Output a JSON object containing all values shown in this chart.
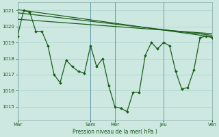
{
  "background_color": "#cce8e0",
  "grid_color": "#aad4cc",
  "line_color": "#1a5c1a",
  "marker_color": "#1a5c1a",
  "xlabel": "Pression niveau de la mer( hPa )",
  "xlabel_color": "#1a5c1a",
  "tick_color": "#1a5c1a",
  "ylim": [
    1014.2,
    1021.5
  ],
  "yticks": [
    1015,
    1016,
    1017,
    1018,
    1019,
    1020,
    1021
  ],
  "xtick_labels": [
    "Mar",
    "Sam",
    "Mer",
    "Jeu",
    "Ven"
  ],
  "xtick_positions": [
    0,
    72,
    96,
    144,
    192
  ],
  "vline_positions": [
    0,
    72,
    96,
    144,
    192
  ],
  "total_hours": 192,
  "main_series_x": [
    0,
    6,
    12,
    18,
    24,
    30,
    36,
    42,
    48,
    54,
    60,
    66,
    72,
    78,
    84,
    90,
    96,
    102,
    108,
    114,
    120,
    126,
    132,
    138,
    144,
    150,
    156,
    162,
    168,
    174,
    180,
    186,
    192
  ],
  "main_series_y": [
    1019.4,
    1021.0,
    1020.9,
    1019.7,
    1019.7,
    1018.8,
    1017.0,
    1016.5,
    1017.9,
    1017.5,
    1017.2,
    1017.1,
    1018.8,
    1017.5,
    1018.0,
    1016.3,
    1015.0,
    1014.9,
    1014.7,
    1015.9,
    1015.9,
    1018.2,
    1019.0,
    1018.6,
    1019.0,
    1018.8,
    1017.2,
    1016.1,
    1016.2,
    1017.3,
    1019.3,
    1019.4,
    1019.3
  ],
  "trend_line1_x": [
    0,
    192
  ],
  "trend_line1_y": [
    1021.05,
    1019.35
  ],
  "trend_line2_x": [
    0,
    192
  ],
  "trend_line2_y": [
    1020.85,
    1019.45
  ],
  "trend_line3_x": [
    0,
    192
  ],
  "trend_line3_y": [
    1020.45,
    1019.55
  ]
}
